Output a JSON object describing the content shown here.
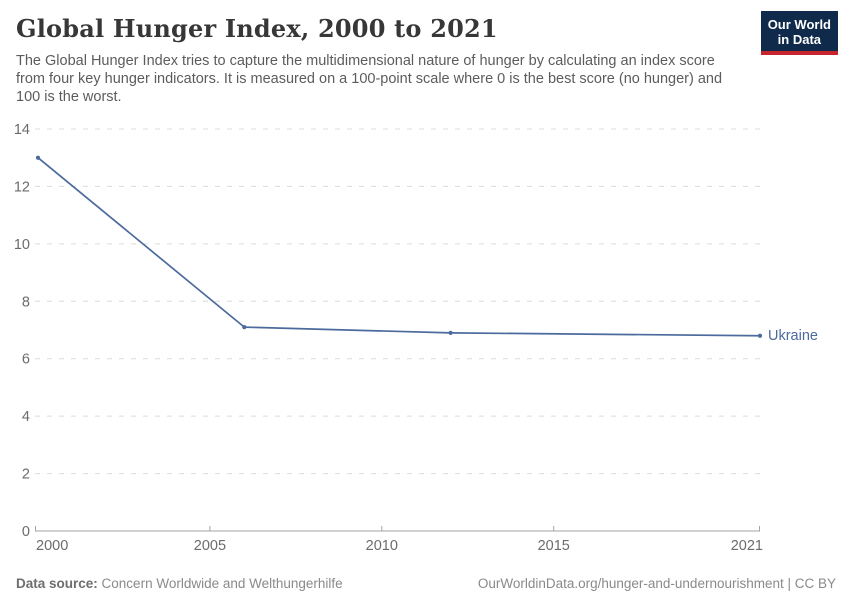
{
  "header": {
    "title": "Global Hunger Index, 2000 to 2021",
    "subtitle_lines": [
      "The Global Hunger Index tries to capture the multidimensional nature of hunger by calculating an index score",
      "from four key hunger indicators. It is measured on a 100-point scale where 0 is the best score (no hunger) and",
      "100 is the worst."
    ]
  },
  "logo": {
    "line1": "Our World",
    "line2": "in Data"
  },
  "chart_data": {
    "type": "line",
    "title": "Global Hunger Index, 2000 to 2021",
    "xlabel": "",
    "ylabel": "",
    "xlim": [
      2000,
      2021
    ],
    "ylim": [
      0,
      14
    ],
    "x_ticks": [
      2000,
      2005,
      2010,
      2015,
      2021
    ],
    "y_ticks": [
      0,
      2,
      4,
      6,
      8,
      10,
      12,
      14
    ],
    "grid": "horizontal-dashed",
    "legend_position": "end-of-line-label",
    "series": [
      {
        "name": "Ukraine",
        "color": "#4c6a9c",
        "x": [
          2000,
          2006,
          2012,
          2021
        ],
        "values": [
          13.0,
          7.1,
          6.9,
          6.8
        ],
        "markers": true
      }
    ]
  },
  "footer": {
    "source_label": "Data source:",
    "source_value": "Concern Worldwide and Welthungerhilfe",
    "credit": "OurWorldinData.org/hunger-and-undernourishment | CC BY"
  },
  "colors": {
    "line_accent": "#4c6a9c",
    "logo_bg": "#102a4c",
    "logo_bar": "#c7252e",
    "grid": "#dcdcdc",
    "axis": "#a3a3a3",
    "tick_label": "#6b6b6b"
  }
}
